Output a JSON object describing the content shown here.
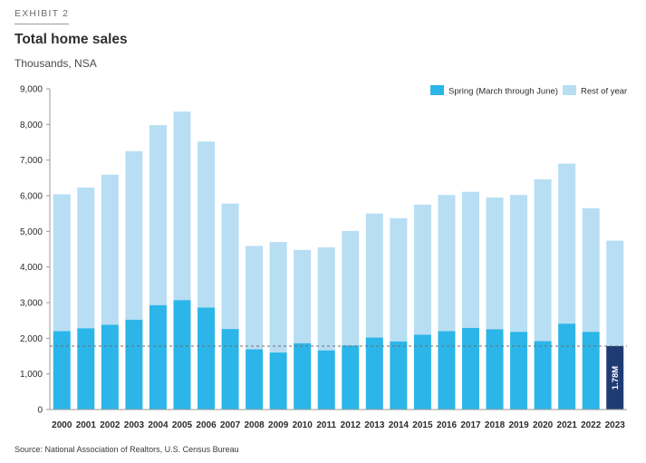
{
  "exhibit": "EXHIBIT 2",
  "title": "Total home sales",
  "subtitle": "Thousands, NSA",
  "source": "Source: National Association of Realtors, U.S. Census Bureau",
  "colors": {
    "spring": "#2cb5e8",
    "rest": "#b8def4",
    "highlight": "#1f3b73",
    "reference_line": "#6e6e6e",
    "axis": "#9a9a9a"
  },
  "chart_data": {
    "type": "bar",
    "stacked": true,
    "categories": [
      "2000",
      "2001",
      "2002",
      "2003",
      "2004",
      "2005",
      "2006",
      "2007",
      "2008",
      "2009",
      "2010",
      "2011",
      "2012",
      "2013",
      "2014",
      "2015",
      "2016",
      "2017",
      "2018",
      "2019",
      "2020",
      "2021",
      "2022",
      "2023"
    ],
    "series": [
      {
        "name": "Spring (March through June)",
        "values": [
          2200,
          2280,
          2380,
          2520,
          2930,
          3070,
          2860,
          2260,
          1690,
          1600,
          1860,
          1660,
          1800,
          2020,
          1910,
          2100,
          2200,
          2290,
          2250,
          2180,
          1920,
          2410,
          2180,
          1780
        ]
      },
      {
        "name": "Rest of year",
        "values": [
          3840,
          3950,
          4210,
          4730,
          5050,
          5290,
          4660,
          3520,
          2900,
          3100,
          2620,
          2890,
          3210,
          3480,
          3460,
          3650,
          3820,
          3820,
          3700,
          3840,
          4540,
          4490,
          3470,
          2960
        ]
      }
    ],
    "ylim": [
      0,
      9000
    ],
    "yticks": [
      "0",
      "1,000",
      "2,000",
      "3,000",
      "4,000",
      "5,000",
      "6,000",
      "7,000",
      "8,000",
      "9,000"
    ],
    "reference_line": 1780,
    "annotation": {
      "category": "2023",
      "text": "1.78M"
    },
    "legend_position": "top-right",
    "grid": false
  }
}
